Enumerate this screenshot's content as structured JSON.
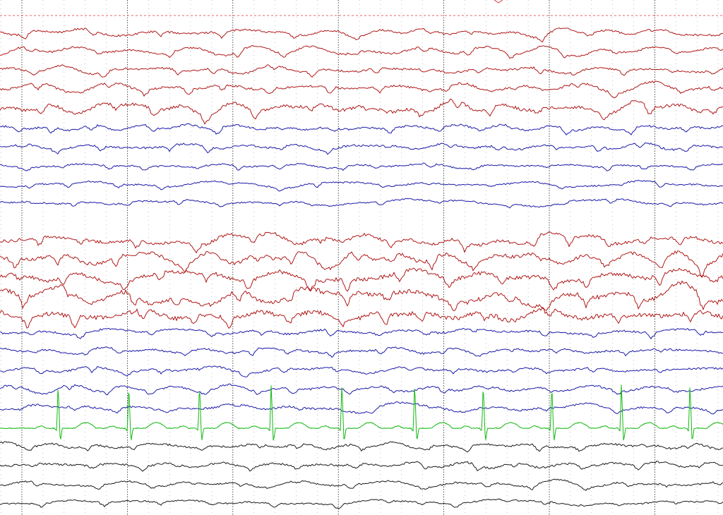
{
  "colors": {
    "left_chain": "#b01818",
    "right_chain": "#1a1aa8",
    "ecg": "#12b812",
    "misc": "#1a1a1a",
    "second_line": "#222222",
    "sub_line": "#9a9a9a",
    "marker": "#e03030",
    "background": "#ffffff"
  },
  "chart_data": {
    "type": "line",
    "title": "",
    "xlabel": "",
    "ylabel": "",
    "x_unit": "s",
    "xlim": [
      0,
      6.8
    ],
    "major_grid_s": 1.0,
    "minor_grid_s": 0.2,
    "grid": true,
    "legend": "none",
    "marker_line": true,
    "channel_groups": [
      "left_chain",
      "right_chain",
      "left_chain",
      "right_chain",
      "ecg",
      "misc"
    ],
    "channels": [
      {
        "group": "left_chain",
        "amp": 5,
        "seed": 1
      },
      {
        "group": "left_chain",
        "amp": 5,
        "seed": 2
      },
      {
        "group": "left_chain",
        "amp": 5,
        "seed": 3
      },
      {
        "group": "left_chain",
        "amp": 6,
        "seed": 4
      },
      {
        "group": "left_chain",
        "amp": 8,
        "seed": 5
      },
      {
        "group": "right_chain",
        "amp": 5,
        "seed": 6
      },
      {
        "group": "right_chain",
        "amp": 5,
        "seed": 7
      },
      {
        "group": "right_chain",
        "amp": 4,
        "seed": 8
      },
      {
        "group": "right_chain",
        "amp": 4,
        "seed": 9
      },
      {
        "group": "right_chain",
        "amp": 4,
        "seed": 10
      },
      {
        "group": "left_chain",
        "amp": 8,
        "seed": 11
      },
      {
        "group": "left_chain",
        "amp": 9,
        "seed": 12
      },
      {
        "group": "left_chain",
        "amp": 10,
        "seed": 13
      },
      {
        "group": "left_chain",
        "amp": 11,
        "seed": 14
      },
      {
        "group": "left_chain",
        "amp": 11,
        "seed": 15
      },
      {
        "group": "right_chain",
        "amp": 5,
        "seed": 16
      },
      {
        "group": "right_chain",
        "amp": 5,
        "seed": 17
      },
      {
        "group": "right_chain",
        "amp": 5,
        "seed": 18
      },
      {
        "group": "right_chain",
        "amp": 5,
        "seed": 19
      },
      {
        "group": "right_chain",
        "amp": 5,
        "seed": 20
      },
      {
        "group": "ecg",
        "amp": 1,
        "seed": 21
      },
      {
        "group": "misc",
        "amp": 5,
        "seed": 22
      },
      {
        "group": "misc",
        "amp": 5,
        "seed": 23
      },
      {
        "group": "misc",
        "amp": 4,
        "seed": 24
      },
      {
        "group": "misc",
        "amp": 4,
        "seed": 25
      }
    ],
    "ecg_beats_s": [
      0.33,
      1.0,
      1.67,
      2.35,
      3.02,
      3.71,
      4.36,
      5.01,
      5.67,
      6.32
    ]
  }
}
